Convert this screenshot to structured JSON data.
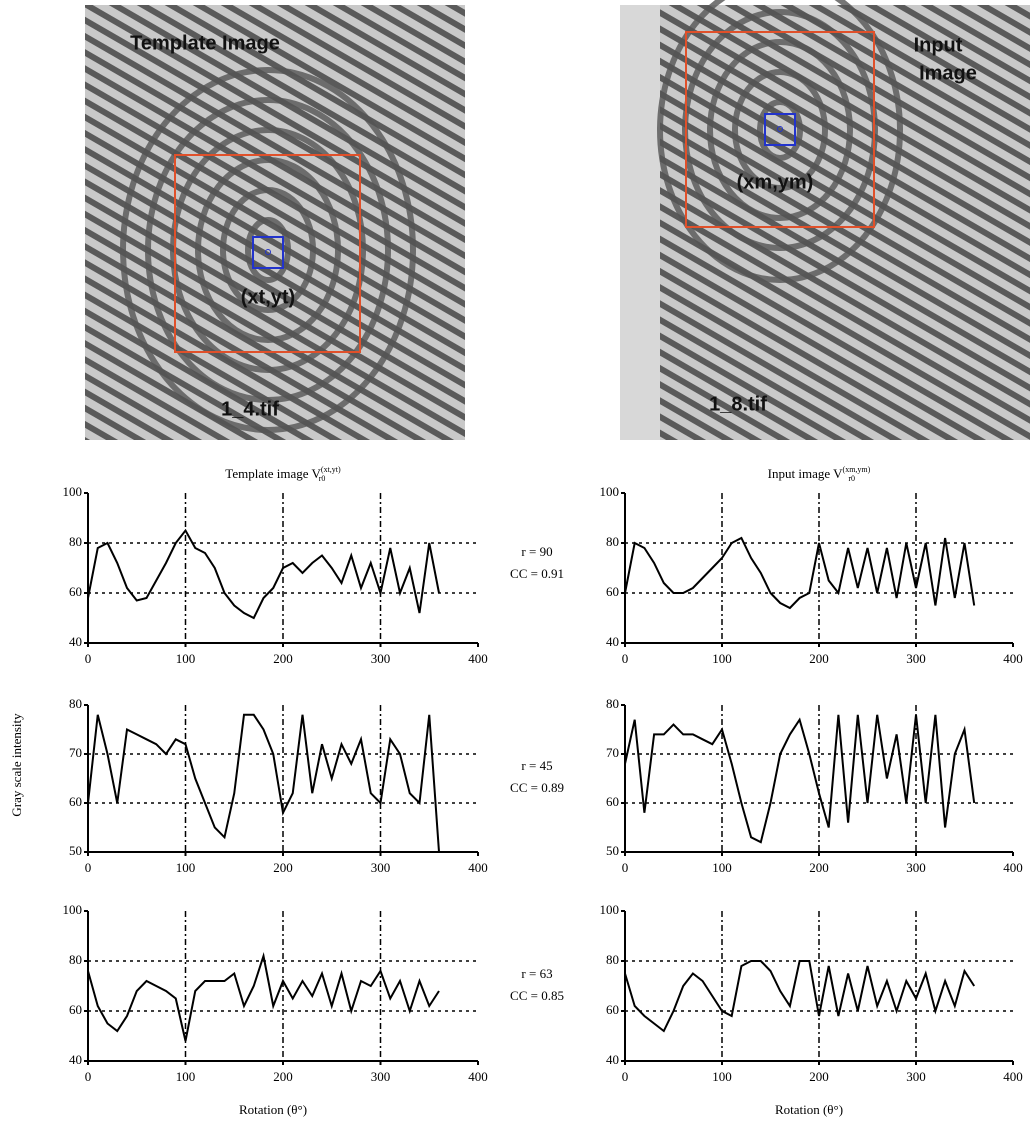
{
  "images": [
    {
      "title": "Template Image",
      "point": "(xt,yt)",
      "file": "1_4.tif"
    },
    {
      "title": "Input",
      "title2": "Image",
      "point": "(xm,ym)",
      "file": "1_8.tif"
    }
  ],
  "ylabel": "Gray scale intensity",
  "comparisons": [
    {
      "r": "r = 90",
      "cc": "CC = 0.91"
    },
    {
      "r": "r = 45",
      "cc": "CC = 0.89"
    },
    {
      "r": "r = 63",
      "cc": "CC = 0.85"
    }
  ],
  "chart_data": [
    {
      "type": "line",
      "title": "Template image  V",
      "title_sub": "r0",
      "title_sup": "(xt,yt)",
      "x": [
        0,
        10,
        20,
        30,
        40,
        50,
        60,
        70,
        80,
        90,
        100,
        110,
        120,
        130,
        140,
        150,
        160,
        170,
        180,
        190,
        200,
        210,
        220,
        230,
        240,
        250,
        260,
        270,
        280,
        290,
        300,
        310,
        320,
        330,
        340,
        350,
        360
      ],
      "values": [
        58,
        78,
        80,
        72,
        62,
        57,
        58,
        65,
        72,
        80,
        85,
        78,
        76,
        70,
        60,
        55,
        52,
        50,
        58,
        62,
        70,
        72,
        68,
        72,
        75,
        70,
        64,
        75,
        62,
        72,
        60,
        78,
        60,
        70,
        52,
        80,
        60
      ],
      "color": "#000000",
      "xlim": [
        0,
        400
      ],
      "xticks": [
        0,
        100,
        200,
        300,
        400
      ],
      "ylim": [
        40,
        100
      ],
      "yticks": [
        40,
        60,
        80,
        100
      ],
      "grid": true
    },
    {
      "type": "line",
      "title": "Input image  V",
      "title_sub": "r0",
      "title_sup": "(xm,ym)",
      "x": [
        0,
        10,
        20,
        30,
        40,
        50,
        60,
        70,
        80,
        90,
        100,
        110,
        120,
        130,
        140,
        150,
        160,
        170,
        180,
        190,
        200,
        210,
        220,
        230,
        240,
        250,
        260,
        270,
        280,
        290,
        300,
        310,
        320,
        330,
        340,
        350,
        360
      ],
      "values": [
        60,
        80,
        78,
        72,
        64,
        60,
        60,
        62,
        66,
        70,
        74,
        80,
        82,
        74,
        68,
        60,
        56,
        54,
        58,
        60,
        80,
        65,
        60,
        78,
        62,
        78,
        60,
        78,
        58,
        80,
        62,
        80,
        55,
        82,
        58,
        80,
        55
      ],
      "color": "#000000",
      "xlim": [
        0,
        400
      ],
      "xticks": [
        0,
        100,
        200,
        300,
        400
      ],
      "ylim": [
        40,
        100
      ],
      "yticks": [
        40,
        60,
        80,
        100
      ],
      "grid": true
    },
    {
      "type": "line",
      "x": [
        0,
        10,
        20,
        30,
        40,
        50,
        60,
        70,
        80,
        90,
        100,
        110,
        120,
        130,
        140,
        150,
        160,
        170,
        180,
        190,
        200,
        210,
        220,
        230,
        240,
        250,
        260,
        270,
        280,
        290,
        300,
        310,
        320,
        330,
        340,
        350,
        360
      ],
      "values": [
        60,
        78,
        70,
        60,
        75,
        74,
        73,
        72,
        70,
        73,
        72,
        65,
        60,
        55,
        53,
        62,
        78,
        78,
        75,
        70,
        58,
        62,
        78,
        62,
        72,
        65,
        72,
        68,
        73,
        62,
        60,
        73,
        70,
        62,
        60,
        78,
        50
      ],
      "color": "#000000",
      "xlim": [
        0,
        400
      ],
      "xticks": [
        0,
        100,
        200,
        300,
        400
      ],
      "ylim": [
        50,
        80
      ],
      "yticks": [
        50,
        60,
        70,
        80
      ],
      "grid": true
    },
    {
      "type": "line",
      "x": [
        0,
        10,
        20,
        30,
        40,
        50,
        60,
        70,
        80,
        90,
        100,
        110,
        120,
        130,
        140,
        150,
        160,
        170,
        180,
        190,
        200,
        210,
        220,
        230,
        240,
        250,
        260,
        270,
        280,
        290,
        300,
        310,
        320,
        330,
        340,
        350,
        360
      ],
      "values": [
        68,
        77,
        58,
        74,
        74,
        76,
        74,
        74,
        73,
        72,
        75,
        68,
        60,
        53,
        52,
        60,
        70,
        74,
        77,
        70,
        62,
        55,
        78,
        56,
        78,
        60,
        78,
        65,
        74,
        60,
        78,
        60,
        78,
        55,
        70,
        75,
        60
      ],
      "color": "#000000",
      "xlim": [
        0,
        400
      ],
      "xticks": [
        0,
        100,
        200,
        300,
        400
      ],
      "ylim": [
        50,
        80
      ],
      "yticks": [
        50,
        60,
        70,
        80
      ],
      "grid": true
    },
    {
      "type": "line",
      "xlabel": "Rotation (θ°)",
      "x": [
        0,
        10,
        20,
        30,
        40,
        50,
        60,
        70,
        80,
        90,
        100,
        110,
        120,
        130,
        140,
        150,
        160,
        170,
        180,
        190,
        200,
        210,
        220,
        230,
        240,
        250,
        260,
        270,
        280,
        290,
        300,
        310,
        320,
        330,
        340,
        350,
        360
      ],
      "values": [
        76,
        62,
        55,
        52,
        58,
        68,
        72,
        70,
        68,
        65,
        48,
        68,
        72,
        72,
        72,
        75,
        62,
        70,
        82,
        62,
        72,
        65,
        72,
        66,
        75,
        62,
        75,
        60,
        72,
        70,
        76,
        65,
        72,
        60,
        72,
        62,
        68
      ],
      "color": "#000000",
      "xlim": [
        0,
        400
      ],
      "xticks": [
        0,
        100,
        200,
        300,
        400
      ],
      "ylim": [
        40,
        100
      ],
      "yticks": [
        40,
        60,
        80,
        100
      ],
      "grid": true
    },
    {
      "type": "line",
      "xlabel": "Rotation (θ°)",
      "x": [
        0,
        10,
        20,
        30,
        40,
        50,
        60,
        70,
        80,
        90,
        100,
        110,
        120,
        130,
        140,
        150,
        160,
        170,
        180,
        190,
        200,
        210,
        220,
        230,
        240,
        250,
        260,
        270,
        280,
        290,
        300,
        310,
        320,
        330,
        340,
        350,
        360
      ],
      "values": [
        75,
        62,
        58,
        55,
        52,
        60,
        70,
        75,
        72,
        66,
        60,
        58,
        78,
        80,
        80,
        76,
        68,
        62,
        80,
        80,
        58,
        78,
        58,
        75,
        60,
        78,
        62,
        72,
        60,
        72,
        65,
        75,
        60,
        72,
        62,
        76,
        70
      ],
      "color": "#000000",
      "xlim": [
        0,
        400
      ],
      "xticks": [
        0,
        100,
        200,
        300,
        400
      ],
      "ylim": [
        40,
        100
      ],
      "yticks": [
        40,
        60,
        80,
        100
      ],
      "grid": true
    }
  ]
}
